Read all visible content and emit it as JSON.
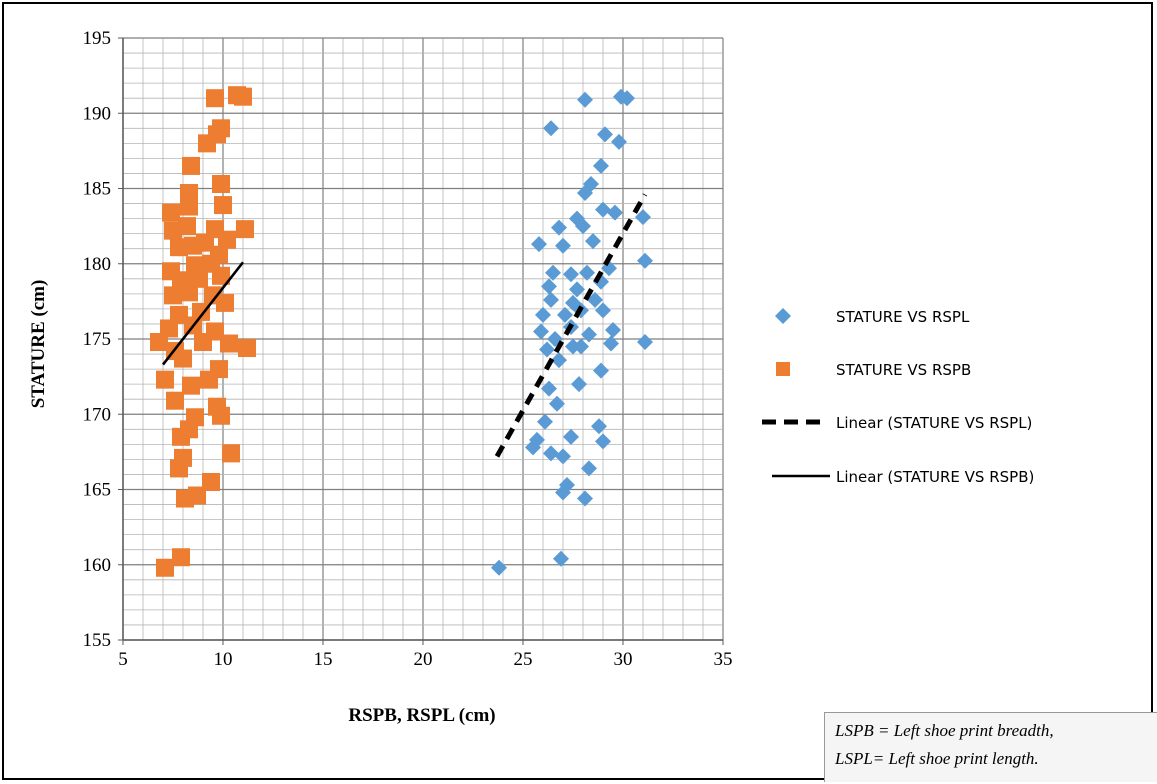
{
  "chart_data": {
    "type": "scatter",
    "xlabel": "RSPB, RSPL (cm)",
    "ylabel": "STATURE (cm)",
    "xlim": [
      5,
      35
    ],
    "ylim": [
      155,
      195
    ],
    "x_ticks": [
      "5",
      "10",
      "15",
      "20",
      "25",
      "30",
      "35"
    ],
    "y_ticks": [
      "155",
      "160",
      "165",
      "170",
      "175",
      "180",
      "185",
      "190",
      "195"
    ],
    "grid": true,
    "legend_position": "right",
    "series": [
      {
        "name": "STATURE VS RSPL",
        "marker": "diamond",
        "color": "#5b9bd5",
        "points": [
          [
            23.8,
            159.8
          ],
          [
            26.9,
            160.4
          ],
          [
            28.1,
            164.4
          ],
          [
            27.0,
            164.8
          ],
          [
            27.2,
            165.3
          ],
          [
            28.3,
            166.4
          ],
          [
            26.4,
            167.4
          ],
          [
            27.0,
            167.2
          ],
          [
            25.5,
            167.8
          ],
          [
            25.7,
            168.3
          ],
          [
            27.4,
            168.5
          ],
          [
            29.0,
            168.2
          ],
          [
            26.1,
            169.5
          ],
          [
            28.8,
            169.2
          ],
          [
            26.7,
            170.7
          ],
          [
            26.3,
            171.7
          ],
          [
            27.8,
            172.0
          ],
          [
            28.9,
            172.9
          ],
          [
            26.8,
            173.6
          ],
          [
            26.2,
            174.3
          ],
          [
            27.5,
            174.5
          ],
          [
            27.9,
            174.5
          ],
          [
            29.4,
            174.7
          ],
          [
            31.1,
            174.8
          ],
          [
            25.9,
            175.5
          ],
          [
            26.6,
            175.0
          ],
          [
            27.4,
            175.8
          ],
          [
            28.3,
            175.3
          ],
          [
            29.5,
            175.6
          ],
          [
            26.0,
            176.6
          ],
          [
            27.1,
            176.6
          ],
          [
            27.9,
            176.9
          ],
          [
            29.0,
            176.9
          ],
          [
            26.4,
            177.6
          ],
          [
            27.5,
            177.4
          ],
          [
            28.6,
            177.6
          ],
          [
            26.3,
            178.5
          ],
          [
            27.7,
            178.3
          ],
          [
            28.9,
            178.8
          ],
          [
            26.5,
            179.4
          ],
          [
            27.4,
            179.3
          ],
          [
            28.2,
            179.4
          ],
          [
            29.3,
            179.7
          ],
          [
            31.1,
            180.2
          ],
          [
            25.8,
            181.3
          ],
          [
            27.0,
            181.2
          ],
          [
            28.5,
            181.5
          ],
          [
            26.8,
            182.4
          ],
          [
            28.0,
            182.5
          ],
          [
            29.0,
            183.6
          ],
          [
            29.6,
            183.4
          ],
          [
            31.0,
            183.1
          ],
          [
            27.7,
            183.0
          ],
          [
            28.1,
            184.7
          ],
          [
            28.4,
            185.3
          ],
          [
            28.9,
            186.5
          ],
          [
            29.8,
            188.1
          ],
          [
            29.1,
            188.6
          ],
          [
            26.4,
            189.0
          ],
          [
            28.1,
            190.9
          ],
          [
            29.9,
            191.1
          ],
          [
            30.2,
            191.0
          ]
        ]
      },
      {
        "name": "STATURE VS RSPB",
        "marker": "square",
        "color": "#ed7d31",
        "points": [
          [
            7.1,
            159.8
          ],
          [
            7.9,
            160.5
          ],
          [
            8.1,
            164.4
          ],
          [
            8.7,
            164.6
          ],
          [
            9.4,
            165.5
          ],
          [
            7.8,
            166.4
          ],
          [
            8.0,
            167.1
          ],
          [
            10.4,
            167.4
          ],
          [
            7.9,
            168.5
          ],
          [
            8.3,
            169.0
          ],
          [
            8.6,
            169.8
          ],
          [
            9.9,
            169.9
          ],
          [
            7.6,
            170.9
          ],
          [
            9.7,
            170.5
          ],
          [
            8.4,
            171.9
          ],
          [
            9.3,
            172.3
          ],
          [
            7.1,
            172.3
          ],
          [
            9.8,
            173.0
          ],
          [
            8.0,
            173.7
          ],
          [
            7.6,
            174.2
          ],
          [
            6.8,
            174.8
          ],
          [
            9.0,
            174.8
          ],
          [
            10.3,
            174.7
          ],
          [
            11.2,
            174.4
          ],
          [
            7.3,
            175.7
          ],
          [
            8.5,
            175.9
          ],
          [
            9.6,
            175.5
          ],
          [
            7.8,
            176.6
          ],
          [
            8.9,
            176.8
          ],
          [
            10.1,
            177.4
          ],
          [
            7.5,
            177.9
          ],
          [
            8.3,
            178.1
          ],
          [
            9.5,
            177.9
          ],
          [
            7.9,
            178.9
          ],
          [
            8.8,
            179.0
          ],
          [
            9.9,
            179.2
          ],
          [
            7.4,
            179.5
          ],
          [
            8.6,
            179.9
          ],
          [
            9.4,
            180.0
          ],
          [
            7.8,
            181.1
          ],
          [
            8.5,
            181.2
          ],
          [
            9.1,
            181.4
          ],
          [
            10.2,
            181.6
          ],
          [
            7.5,
            182.2
          ],
          [
            8.2,
            182.5
          ],
          [
            9.6,
            182.3
          ],
          [
            11.1,
            182.3
          ],
          [
            7.4,
            183.4
          ],
          [
            8.3,
            183.8
          ],
          [
            10.0,
            183.9
          ],
          [
            8.3,
            184.7
          ],
          [
            9.9,
            185.3
          ],
          [
            8.4,
            186.5
          ],
          [
            9.2,
            188.0
          ],
          [
            9.7,
            188.6
          ],
          [
            9.9,
            189.0
          ],
          [
            9.6,
            191.0
          ],
          [
            10.7,
            191.2
          ],
          [
            11.0,
            191.1
          ],
          [
            9.8,
            180.6
          ]
        ]
      },
      {
        "name": "Linear  (STATURE VS RSPL)",
        "type": "line",
        "style": "dashed",
        "color": "#000000",
        "points": [
          [
            23.7,
            167.2
          ],
          [
            31.1,
            184.6
          ]
        ]
      },
      {
        "name": "Linear  (STATURE VS RSPB)",
        "type": "line",
        "style": "solid",
        "color": "#000000",
        "points": [
          [
            7.0,
            173.3
          ],
          [
            11.0,
            180.1
          ]
        ]
      }
    ]
  },
  "note": {
    "line1": "LSPB = Left shoe print breadth,",
    "line2": "LSPL= Left shoe print length."
  }
}
